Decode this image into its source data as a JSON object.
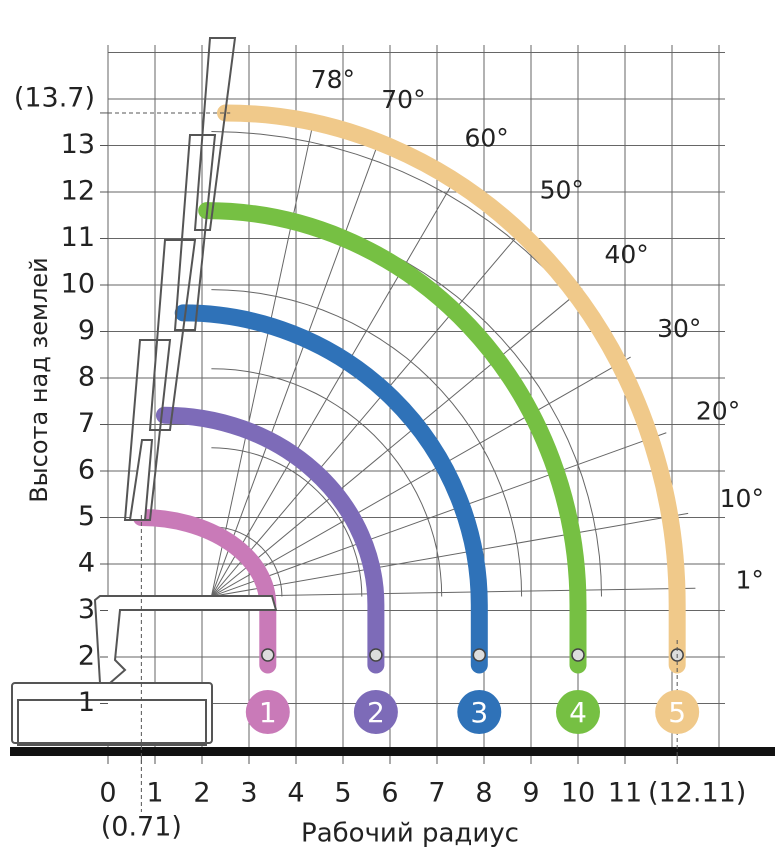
{
  "chart_data": {
    "type": "working-range",
    "xlabel": "Рабочий радиус",
    "ylabel": "Высота над землей",
    "xticks": [
      0,
      {
        "value": 0.71,
        "label": "(0.71)"
      },
      1,
      2,
      3,
      4,
      5,
      6,
      7,
      8,
      9,
      10,
      11,
      {
        "value": 12.11,
        "label": "(12.11)"
      }
    ],
    "yticks": [
      1,
      2,
      3,
      4,
      5,
      6,
      7,
      8,
      9,
      10,
      11,
      12,
      13,
      {
        "value": 13.7,
        "label": "(13.7)"
      }
    ],
    "angles": [
      {
        "value": 78,
        "label": "78°"
      },
      {
        "value": 70,
        "label": "70°"
      },
      {
        "value": 60,
        "label": "60°"
      },
      {
        "value": 50,
        "label": "50°"
      },
      {
        "value": 40,
        "label": "40°"
      },
      {
        "value": 30,
        "label": "30°"
      },
      {
        "value": 20,
        "label": "20°"
      },
      {
        "value": 10,
        "label": "10°"
      },
      {
        "value": 1,
        "label": "1°"
      }
    ],
    "series": [
      {
        "name": "1",
        "color": "#c97ab8",
        "min_radius": 0.71,
        "max_height": 5.0,
        "max_radius": 3.4
      },
      {
        "name": "2",
        "color": "#7d6bb8",
        "min_radius": 1.2,
        "max_height": 7.2,
        "max_radius": 5.7
      },
      {
        "name": "3",
        "color": "#2f72b8",
        "min_radius": 1.6,
        "max_height": 9.4,
        "max_radius": 7.9
      },
      {
        "name": "4",
        "color": "#76c043",
        "min_radius": 2.1,
        "max_height": 11.6,
        "max_radius": 10.0
      },
      {
        "name": "5",
        "color": "#f0c98a",
        "min_radius": 2.5,
        "max_height": 13.7,
        "max_radius": 12.11
      }
    ]
  }
}
